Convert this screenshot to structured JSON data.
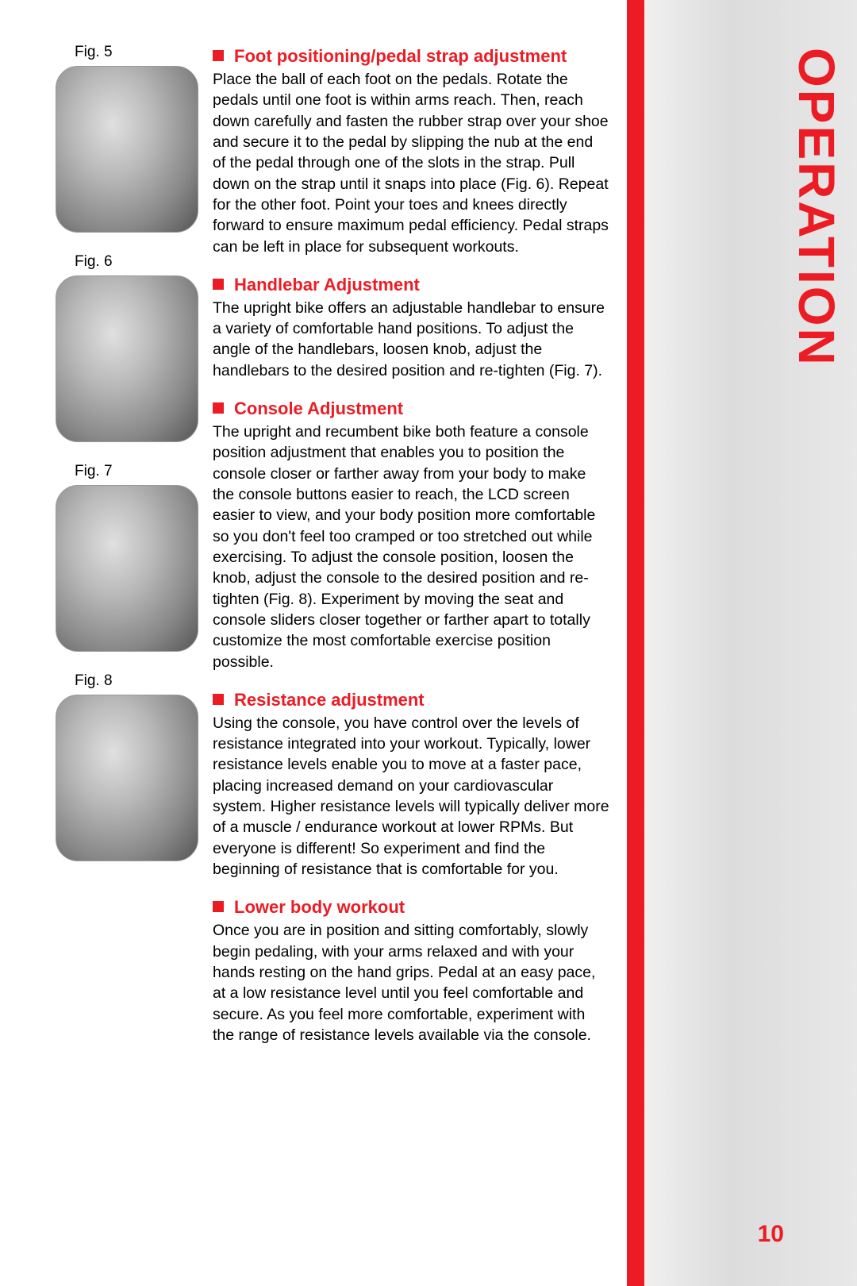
{
  "tab": "OPERATION",
  "page_number": "10",
  "figures": [
    {
      "label": "Fig. 5"
    },
    {
      "label": "Fig. 6"
    },
    {
      "label": "Fig. 7"
    },
    {
      "label": "Fig. 8"
    }
  ],
  "sections": [
    {
      "heading": "Foot positioning/pedal strap adjustment",
      "body": "Place the ball of each foot on the pedals. Rotate the pedals until one foot is within arms reach. Then, reach down carefully and fasten the rubber strap over your shoe and secure it to the pedal by slipping the nub at the end of the pedal through one of the slots in the strap. Pull down on the strap until it snaps into place (Fig. 6). Repeat for the other foot. Point your toes and knees directly forward to ensure maximum pedal efficiency. Pedal straps can be left in place for subsequent workouts."
    },
    {
      "heading": "Handlebar Adjustment",
      "body": "The upright bike offers an adjustable handlebar to ensure a variety of comfortable hand positions.  To adjust the angle of the handlebars, loosen knob, adjust the handlebars to the desired position and re-tighten (Fig. 7)."
    },
    {
      "heading": "Console Adjustment",
      "body": "The upright and recumbent bike both feature a console position adjustment that enables you to position the console closer or farther away from your body to make the console buttons easier to reach, the LCD screen easier to view, and your body position more comfortable so you don't feel too cramped or too stretched out while exercising.  To adjust the console position, loosen the knob, adjust the console to the desired position and re-tighten (Fig. 8).  Experiment by moving the seat and console sliders closer together or farther apart to totally customize the most comfortable exercise position possible."
    },
    {
      "heading": "Resistance adjustment",
      "body": "Using the console, you have control over the levels of resistance integrated into your workout. Typically, lower resistance levels enable you to move at a faster pace, placing increased demand on your cardiovascular system. Higher resistance levels will typically deliver more of a muscle / endurance workout at lower RPMs. But everyone is different! So experiment and find the beginning of resistance that is comfortable for you."
    },
    {
      "heading": "Lower body workout",
      "body": "Once you are in position and sitting comfortably, slowly begin pedaling, with your arms relaxed and with your hands resting on the hand grips. Pedal at an easy pace, at a low resistance level until you feel comfortable and secure. As you feel more comfortable, experiment with the range of resistance levels available via the console."
    }
  ],
  "colors": {
    "accent": "#ec1c24",
    "text": "#000000",
    "background": "#ffffff"
  }
}
